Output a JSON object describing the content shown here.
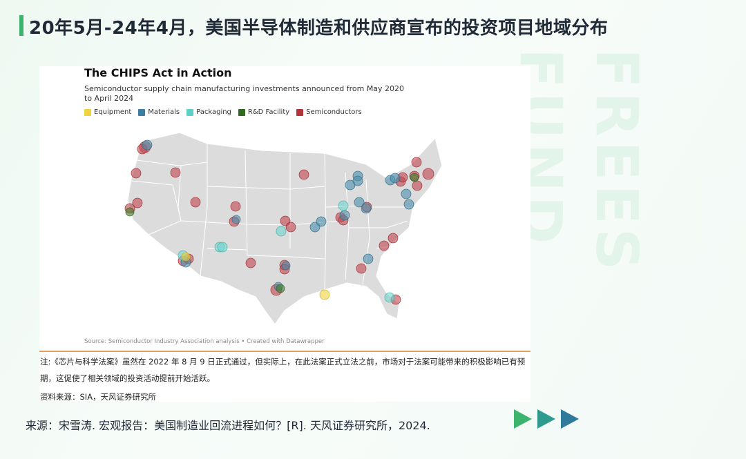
{
  "slide": {
    "title": "20年5月-24年4月，美国半导体制造和供应商宣布的投资项目地域分布",
    "watermark": "FREES FUND",
    "bottom_source": "来源：宋雪涛. 宏观报告：美国制造业回流进程如何？[R]. 天风证券研究所，2024."
  },
  "figure": {
    "title": "The CHIPS Act in Action",
    "subtitle": "Semiconductor supply chain manufacturing investments announced from May 2020 to April 2024",
    "source": "Source: Semiconductor Industry Association analysis • Created with Datawrapper",
    "note": "注:《芯片与科学法案》虽然在 2022 年 8 月 9 日正式通过，但实际上，在此法案正式立法之前，市场对于法案可能带来的积极影响已有预期，这促使了相关领域的投资活动提前开始活跃。",
    "note_source": "资料来源：SIA，天风证券研究所",
    "legend": [
      {
        "label": "Equipment",
        "color": "#f0d23c"
      },
      {
        "label": "Materials",
        "color": "#3a7fa0"
      },
      {
        "label": "Packaging",
        "color": "#5fd0c8"
      },
      {
        "label": "R&D Facility",
        "color": "#2e6b1e"
      },
      {
        "label": "Semiconductors",
        "color": "#b3343a"
      }
    ]
  },
  "colors": {
    "accent": "#3cb46e",
    "arrow1": "#3cb46e",
    "arrow2": "#2f9a8e",
    "arrow3": "#2f7a9a"
  }
}
